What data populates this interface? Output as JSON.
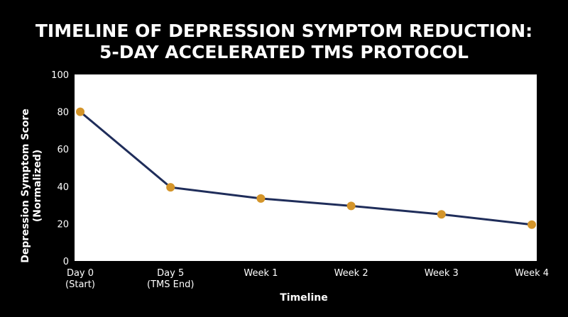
{
  "chart_data": {
    "type": "line",
    "title_lines": [
      "TIMELINE OF DEPRESSION SYMPTOM REDUCTION:",
      "5-DAY ACCELERATED TMS PROTOCOL"
    ],
    "xlabel": "Timeline",
    "ylabel_lines": [
      "Depression Symptom Score",
      "(Normalized)"
    ],
    "categories": [
      [
        "Day 0",
        "(Start)"
      ],
      [
        "Day 5",
        "(TMS End)"
      ],
      [
        "Week 1"
      ],
      [
        "Week 2"
      ],
      [
        "Week 3"
      ],
      [
        "Week 4"
      ]
    ],
    "values": [
      80,
      39.5,
      33.5,
      29.5,
      25,
      19.5
    ],
    "ylim": [
      0,
      100
    ],
    "yticks": [
      0,
      20,
      40,
      60,
      80,
      100
    ],
    "grid": false,
    "colors": {
      "background": "#000000",
      "plot_area": "#ffffff",
      "line": "#1f2d5a",
      "marker": "#d4952a",
      "text": "#ffffff"
    }
  }
}
